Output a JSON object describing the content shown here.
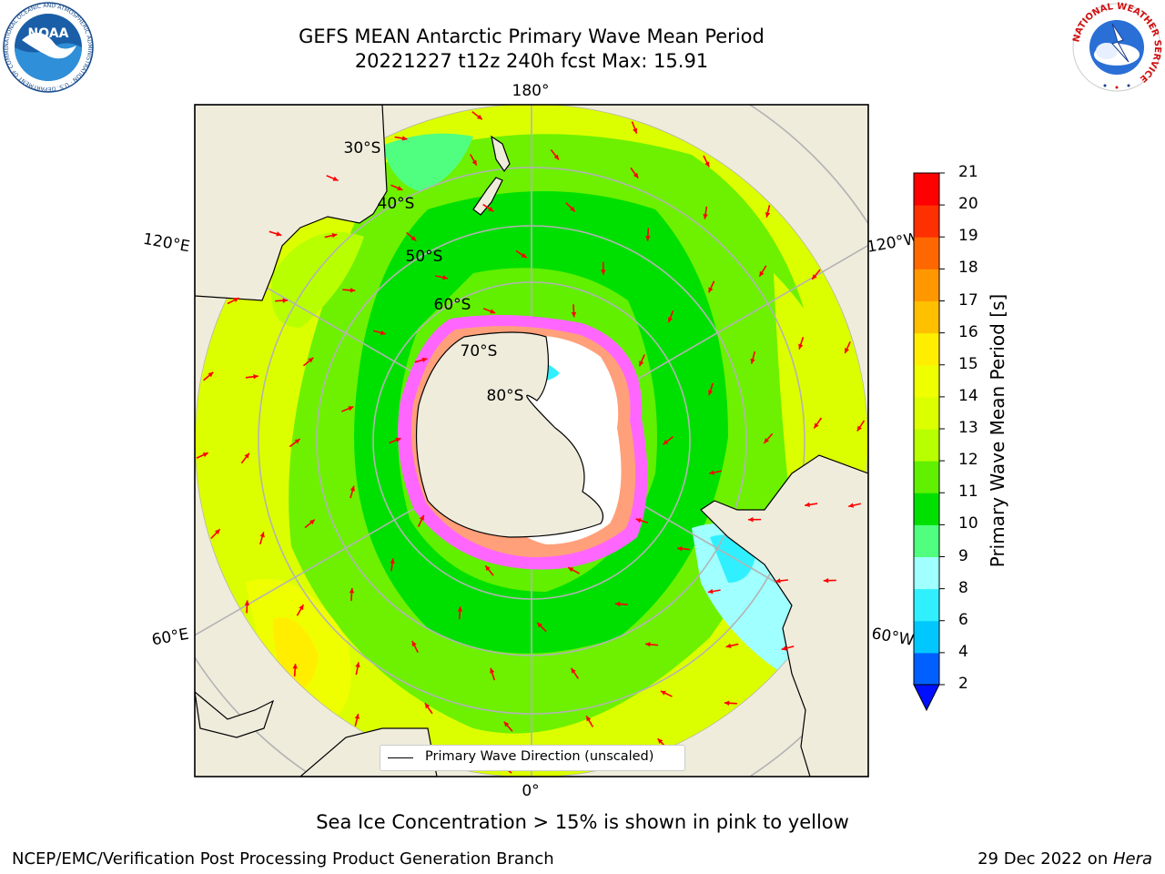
{
  "header": {
    "title_line1": "GEFS MEAN Antarctic Primary Wave Mean Period",
    "title_line2": "20221227 t12z 240h fcst   Max: 15.91"
  },
  "map": {
    "projection": "south-polar-stereographic",
    "longitude_labels": [
      "180°",
      "120°E",
      "120°W",
      "60°E",
      "60°W",
      "0°"
    ],
    "latitude_labels": [
      "30°S",
      "40°S",
      "50°S",
      "60°S",
      "70°S",
      "80°S"
    ],
    "land_color": "#efecdc",
    "ice_colors": [
      "#ff66ff",
      "#ffa07a",
      "#ffe680",
      "#ffffff"
    ],
    "arrow_color": "#ff0000",
    "legend_label": "Primary Wave Direction (unscaled)"
  },
  "colorbar": {
    "label": "Primary Wave Mean Period [s]",
    "ticks": [
      "2",
      "4",
      "6",
      "8",
      "9",
      "10",
      "11",
      "12",
      "13",
      "14",
      "15",
      "16",
      "17",
      "18",
      "19",
      "20",
      "21"
    ],
    "colors": [
      "#0060ff",
      "#00c8ff",
      "#30f0ff",
      "#a0ffff",
      "#50ff80",
      "#00e000",
      "#60f000",
      "#b8ff00",
      "#dcff00",
      "#f0ff00",
      "#ffee00",
      "#ffc000",
      "#ff9800",
      "#ff6800",
      "#ff3000",
      "#ff0000"
    ],
    "under_color": "#0010ff"
  },
  "caption": "Sea Ice Concentration > 15% is shown in pink to yellow",
  "footer": {
    "left": "NCEP/EMC/Verification Post Processing Product Generation Branch",
    "right_date": "29 Dec 2022 on ",
    "right_host": "Hera"
  },
  "logos": {
    "noaa_text": "NOAA",
    "noaa_ring": "NATIONAL OCEANIC AND ATMOSPHERIC ADMINISTRATION · U.S. DEPARTMENT OF COMMERCE",
    "nws_ring": "NATIONAL WEATHER SERVICE"
  }
}
